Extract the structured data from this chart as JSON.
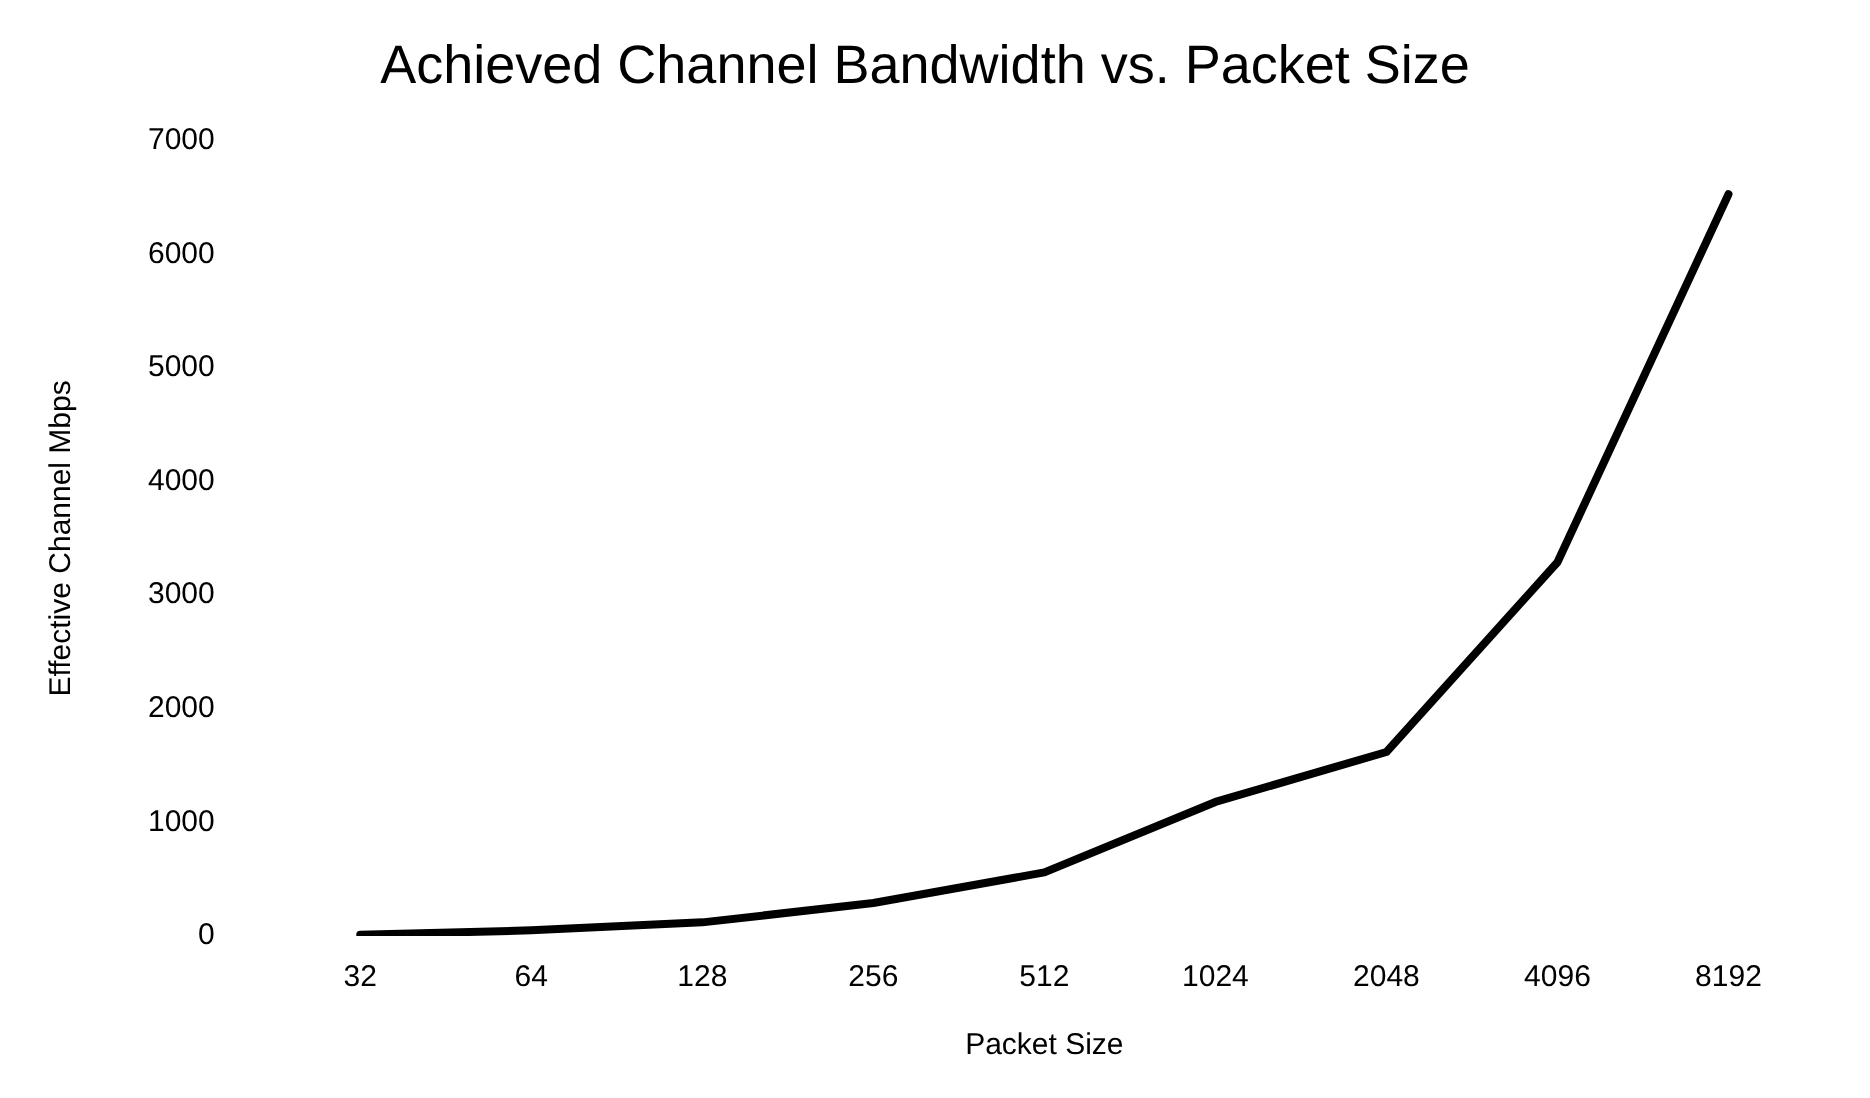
{
  "chart_data": {
    "type": "line",
    "title": "Achieved Channel Bandwidth vs. Packet Size",
    "xlabel": "Packet Size",
    "ylabel": "Effective Channel Mbps",
    "categories": [
      "32",
      "64",
      "128",
      "256",
      "512",
      "1024",
      "2048",
      "4096",
      "8192"
    ],
    "series": [
      {
        "color": "#000000",
        "values": [
          10,
          50,
          120,
          290,
          560,
          1180,
          1620,
          3290,
          6530
        ]
      }
    ],
    "ylim": [
      0,
      7000
    ],
    "yticks": [
      0,
      1000,
      2000,
      3000,
      4000,
      5000,
      6000,
      7000
    ],
    "grid": false,
    "legend": false,
    "marker": "none",
    "line_style": "solid"
  }
}
